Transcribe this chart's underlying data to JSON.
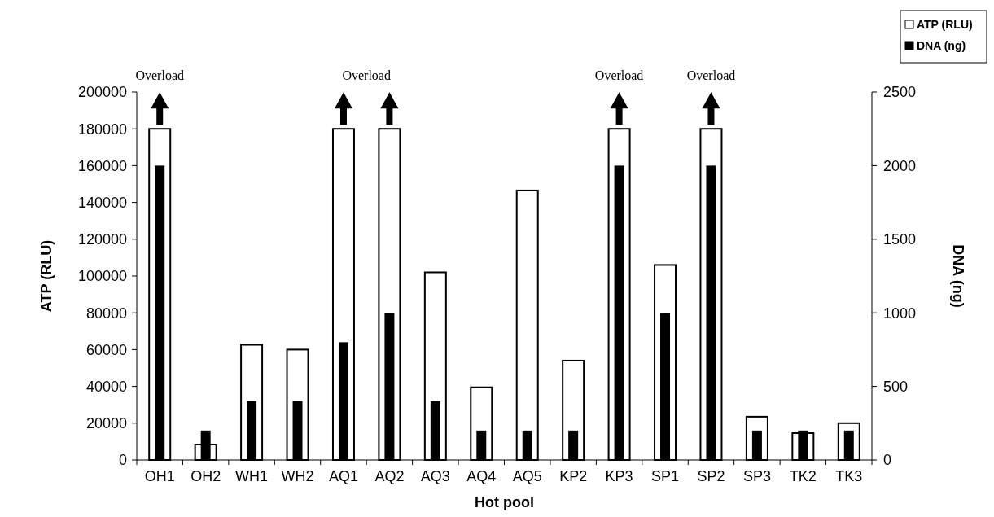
{
  "chart_data": {
    "type": "bar",
    "xlabel": "Hot pool",
    "ylabel": "ATP (RLU)",
    "y2label": "DNA (ng)",
    "categories": [
      "OH1",
      "OH2",
      "WH1",
      "WH2",
      "AQ1",
      "AQ2",
      "AQ3",
      "AQ4",
      "AQ5",
      "KP2",
      "KP3",
      "SP1",
      "SP2",
      "SP3",
      "TK2",
      "TK3"
    ],
    "series": [
      {
        "name": "ATP (RLU)",
        "color": "#ffffff",
        "values": [
          180000,
          8400,
          62600,
          60000,
          180000,
          180000,
          102000,
          39500,
          146500,
          54000,
          180000,
          106000,
          180000,
          23500,
          14600,
          20000
        ]
      },
      {
        "name": "DNA (ng)",
        "color": "#000000",
        "axis": "y2",
        "values": [
          2000,
          200,
          400,
          400,
          800,
          1000,
          400,
          200,
          200,
          200,
          2000,
          1000,
          2000,
          200,
          200,
          200
        ]
      }
    ],
    "ylim": [
      0,
      200000
    ],
    "yticks": [
      0,
      20000,
      40000,
      60000,
      80000,
      100000,
      120000,
      140000,
      160000,
      180000,
      200000
    ],
    "y2lim": [
      0,
      2500
    ],
    "y2ticks": [
      0,
      500,
      1000,
      1500,
      2000,
      2500
    ],
    "annotations": [
      "Overload",
      "Overload",
      "Overload",
      "Overload"
    ],
    "legend": "top right"
  }
}
